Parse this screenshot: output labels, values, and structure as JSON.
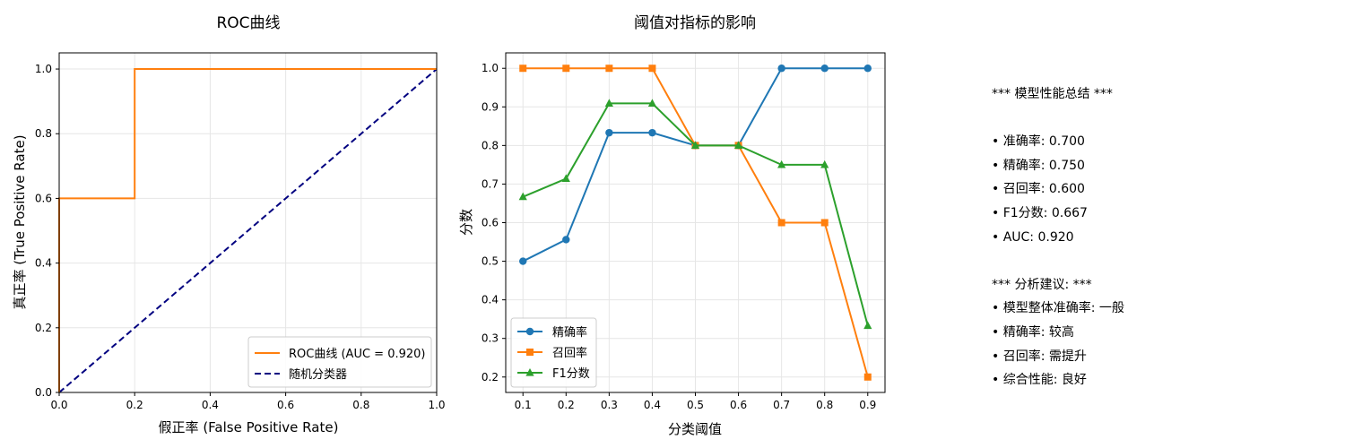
{
  "colors": {
    "roc": "#ff7f0e",
    "random": "#000080",
    "precision": "#1f77b4",
    "recall": "#ff7f0e",
    "f1": "#2ca02c",
    "grid": "#e6e6e6"
  },
  "chart_data": [
    {
      "type": "line",
      "title": "ROC曲线",
      "xlabel": "假正率 (False Positive Rate)",
      "ylabel": "真正率 (True Positive Rate)",
      "xlim": [
        0,
        1
      ],
      "ylim": [
        0,
        1.05
      ],
      "xticks": [
        "0.0",
        "0.2",
        "0.4",
        "0.6",
        "0.8",
        "1.0"
      ],
      "yticks": [
        "0.0",
        "0.2",
        "0.4",
        "0.6",
        "0.8",
        "1.0"
      ],
      "grid": true,
      "legend_position": "lower-right",
      "series": [
        {
          "name": "ROC曲线 (AUC = 0.920)",
          "style": "solid",
          "x": [
            0,
            0,
            0,
            0.2,
            0.2,
            1.0
          ],
          "y": [
            0,
            0.6,
            0.6,
            0.6,
            1.0,
            1.0
          ]
        },
        {
          "name": "随机分类器",
          "style": "dashed",
          "x": [
            0,
            1
          ],
          "y": [
            0,
            1
          ]
        }
      ]
    },
    {
      "type": "line",
      "title": "阈值对指标的影响",
      "xlabel": "分类阈值",
      "ylabel": "分数",
      "xlim": [
        0.06,
        0.94
      ],
      "ylim": [
        0.16,
        1.04
      ],
      "xticks": [
        "0.1",
        "0.2",
        "0.3",
        "0.4",
        "0.5",
        "0.6",
        "0.7",
        "0.8",
        "0.9"
      ],
      "yticks": [
        "0.2",
        "0.3",
        "0.4",
        "0.5",
        "0.6",
        "0.7",
        "0.8",
        "0.9",
        "1.0"
      ],
      "grid": true,
      "legend_position": "lower-left",
      "x": [
        0.1,
        0.2,
        0.3,
        0.4,
        0.5,
        0.6,
        0.7,
        0.8,
        0.9
      ],
      "series": [
        {
          "name": "精确率",
          "marker": "circle",
          "values": [
            0.5,
            0.556,
            0.833,
            0.833,
            0.8,
            0.8,
            1.0,
            1.0,
            1.0
          ]
        },
        {
          "name": "召回率",
          "marker": "square",
          "values": [
            1.0,
            1.0,
            1.0,
            1.0,
            0.8,
            0.8,
            0.6,
            0.6,
            0.2
          ]
        },
        {
          "name": "F1分数",
          "marker": "triangle",
          "values": [
            0.667,
            0.714,
            0.909,
            0.909,
            0.8,
            0.8,
            0.75,
            0.75,
            0.333
          ]
        }
      ]
    }
  ],
  "summary": {
    "header": "*** 模型性能总结 ***",
    "metrics": [
      "• 准确率: 0.700",
      "• 精确率: 0.750",
      "• 召回率: 0.600",
      "• F1分数: 0.667",
      "• AUC: 0.920"
    ],
    "advice_header": "*** 分析建议: ***",
    "advice": [
      "• 模型整体准确率: 一般",
      "• 精确率: 较高",
      "• 召回率: 需提升",
      "• 综合性能: 良好"
    ]
  }
}
